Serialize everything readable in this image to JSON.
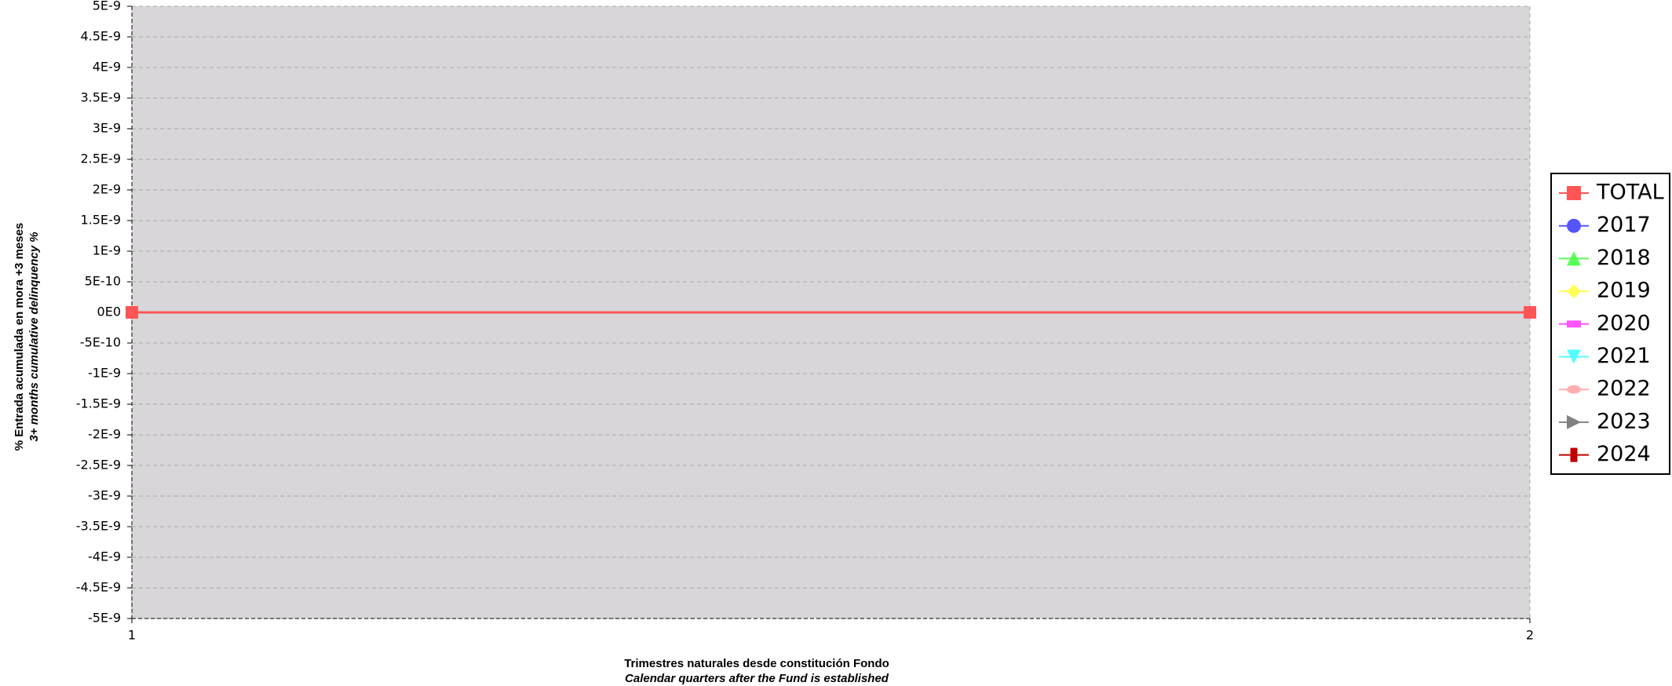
{
  "chart_data": {
    "type": "line",
    "x_label": "Trimestres naturales desde constitución Fondo",
    "x_label_sub": "Calendar quarters after the Fund is established",
    "y_label": "% Entrada acumulada en mora +3 meses",
    "y_label_sub": "3+ months cumulative delinquency %",
    "x": [
      1,
      2
    ],
    "xlim": [
      1,
      2
    ],
    "xticks": [
      1,
      2
    ],
    "ylim": [
      -5e-09,
      5e-09
    ],
    "yticks": [
      {
        "value": -5e-09,
        "label": "-5E-9"
      },
      {
        "value": -4.5e-09,
        "label": "-4.5E-9"
      },
      {
        "value": -4e-09,
        "label": "-4E-9"
      },
      {
        "value": -3.5e-09,
        "label": "-3.5E-9"
      },
      {
        "value": -3e-09,
        "label": "-3E-9"
      },
      {
        "value": -2.5e-09,
        "label": "-2.5E-9"
      },
      {
        "value": -2e-09,
        "label": "-2E-9"
      },
      {
        "value": -1.5e-09,
        "label": "-1.5E-9"
      },
      {
        "value": -1e-09,
        "label": "-1E-9"
      },
      {
        "value": -5e-10,
        "label": "-5E-10"
      },
      {
        "value": 0,
        "label": "0E0"
      },
      {
        "value": 5e-10,
        "label": "5E-10"
      },
      {
        "value": 1e-09,
        "label": "1E-9"
      },
      {
        "value": 1.5e-09,
        "label": "1.5E-9"
      },
      {
        "value": 2e-09,
        "label": "2E-9"
      },
      {
        "value": 2.5e-09,
        "label": "2.5E-9"
      },
      {
        "value": 3e-09,
        "label": "3E-9"
      },
      {
        "value": 3.5e-09,
        "label": "3.5E-9"
      },
      {
        "value": 4e-09,
        "label": "4E-9"
      },
      {
        "value": 4.5e-09,
        "label": "4.5E-9"
      },
      {
        "value": 5e-09,
        "label": "5E-9"
      }
    ],
    "grid": true,
    "legend_position": "right",
    "series": [
      {
        "name": "TOTAL",
        "color": "#ff5555",
        "marker": "square",
        "values": [
          0,
          0
        ]
      },
      {
        "name": "2017",
        "color": "#5555ff",
        "marker": "circle",
        "values": [
          null,
          null
        ]
      },
      {
        "name": "2018",
        "color": "#55ff55",
        "marker": "triangle-up",
        "values": [
          null,
          null
        ]
      },
      {
        "name": "2019",
        "color": "#ffff55",
        "marker": "diamond",
        "values": [
          null,
          null
        ]
      },
      {
        "name": "2020",
        "color": "#ff55ff",
        "marker": "wide-rect",
        "values": [
          null,
          null
        ]
      },
      {
        "name": "2021",
        "color": "#55ffff",
        "marker": "triangle-down",
        "values": [
          null,
          null
        ]
      },
      {
        "name": "2022",
        "color": "#ffafaf",
        "marker": "ellipse",
        "values": [
          null,
          null
        ]
      },
      {
        "name": "2023",
        "color": "#808080",
        "marker": "triangle-right",
        "values": [
          null,
          null
        ]
      },
      {
        "name": "2024",
        "color": "#c00000",
        "marker": "tall-rect",
        "values": [
          null,
          null
        ]
      }
    ]
  }
}
